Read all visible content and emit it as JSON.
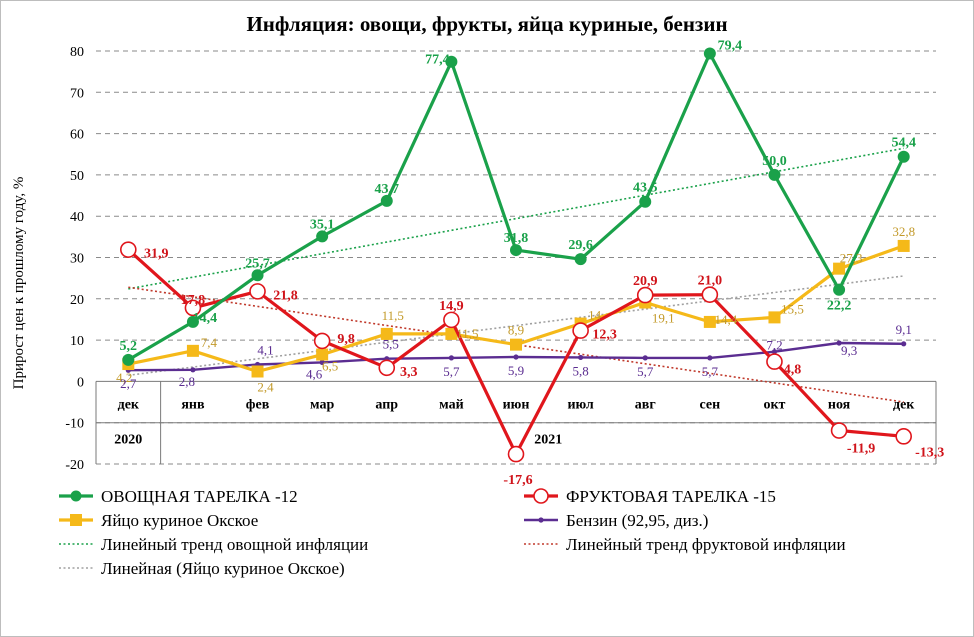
{
  "chart_data": {
    "type": "line",
    "title": "Инфляция: овощи, фрукты, яйца куриные, бензин",
    "ylabel": "Прирост цен к прошлому году, %",
    "xlabel": "",
    "ylim": [
      -20,
      80
    ],
    "yticks": [
      "80",
      "70",
      "60",
      "50",
      "40",
      "30",
      "20",
      "10",
      "0",
      "-10",
      "-20"
    ],
    "categories": [
      "дек",
      "янв",
      "фев",
      "мар",
      "апр",
      "май",
      "июн",
      "июл",
      "авг",
      "сен",
      "окт",
      "ноя",
      "дек"
    ],
    "year_labels": [
      "2020",
      "2021"
    ],
    "grid": true,
    "legend_position": "bottom",
    "series": [
      {
        "key": "veg",
        "name": "ОВОЩНАЯ ТАРЕЛКА -12",
        "color": "#1aa14a",
        "values": [
          5.2,
          14.4,
          25.7,
          35.1,
          43.7,
          77.4,
          31.8,
          29.6,
          43.5,
          79.4,
          50.0,
          22.2,
          54.4
        ],
        "labels": [
          "5,2",
          "14,4",
          "25,7",
          "35,1",
          "43,7",
          "77,4",
          "31,8",
          "29,6",
          "43,5",
          "79,4",
          "50,0",
          "22,2",
          "54,4"
        ]
      },
      {
        "key": "fruit",
        "name": "ФРУКТОВАЯ ТАРЕЛКА -15",
        "color": "#e0161c",
        "values": [
          31.9,
          17.8,
          21.8,
          9.8,
          3.3,
          14.9,
          -17.6,
          12.3,
          20.9,
          21.0,
          4.8,
          -11.9,
          -13.3
        ],
        "labels": [
          "31,9",
          "17,8",
          "21,8",
          "9,8",
          "3,3",
          "14,9",
          "-17,6",
          "12,3",
          "20,9",
          "21,0",
          "4,8",
          "-11,9",
          "-13,3"
        ]
      },
      {
        "key": "egg",
        "name": "Яйцо куриное Окское",
        "color": "#f5b919",
        "values": [
          4.2,
          7.4,
          2.4,
          6.5,
          11.5,
          11.5,
          8.9,
          14.0,
          19.1,
          14.4,
          15.5,
          27.3,
          32.8
        ],
        "labels": [
          "4,2",
          "7,4",
          "2,4",
          "6,5",
          "11,5",
          "11,5",
          "8,9",
          "14",
          "19,1",
          "14,4",
          "15,5",
          "27,3",
          "32,8"
        ]
      },
      {
        "key": "gas",
        "name": "Бензин (92,95, диз.)",
        "color": "#5b2d91",
        "values": [
          2.7,
          2.8,
          4.1,
          4.6,
          5.5,
          5.7,
          5.9,
          5.8,
          5.7,
          5.7,
          7.2,
          9.3,
          9.1
        ],
        "labels": [
          "2,7",
          "2,8",
          "4,1",
          "4,6",
          "5,5",
          "5,7",
          "5,9",
          "5,8",
          "5,7",
          "5,7",
          "7,2",
          "9,3",
          "9,1"
        ]
      }
    ],
    "trendlines": [
      {
        "key": "veg_trend",
        "name": "Линейный тренд овощной инфляции",
        "color": "#1aa14a",
        "of": "veg"
      },
      {
        "key": "fruit_trend",
        "name": "Линейный тренд фруктовой инфляции",
        "color": "#c0392b",
        "of": "fruit"
      },
      {
        "key": "egg_trend",
        "name": "Линейная (Яйцо куриное Окское)",
        "color": "#a0a0a0",
        "of": "egg"
      }
    ]
  }
}
